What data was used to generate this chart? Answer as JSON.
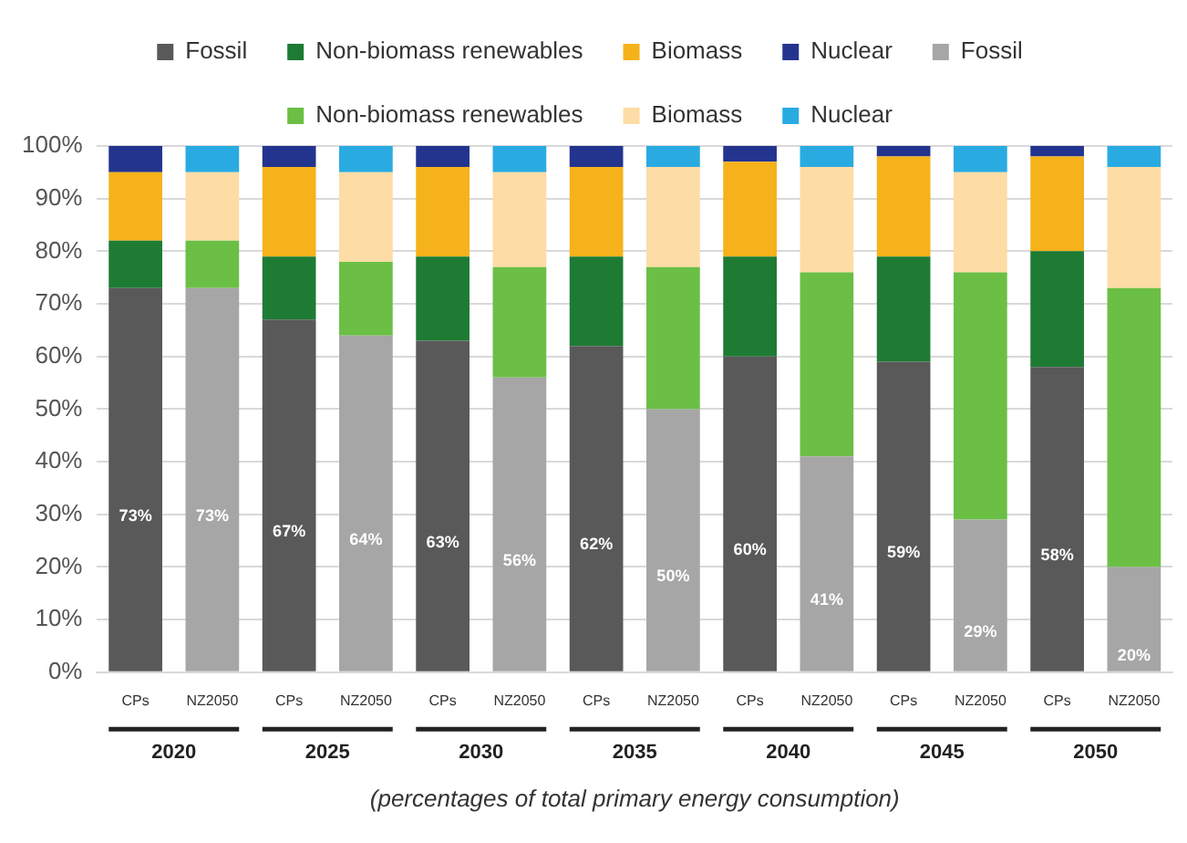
{
  "chart_data": {
    "type": "bar",
    "stacked": true,
    "categories": [
      "CPs",
      "NZ2050",
      "CPs",
      "NZ2050",
      "CPs",
      "NZ2050",
      "CPs",
      "NZ2050",
      "CPs",
      "NZ2050",
      "CPs",
      "NZ2050",
      "CPs",
      "NZ2050"
    ],
    "series": [
      {
        "name": "Fossil",
        "color": "#595959",
        "values": [
          73,
          null,
          67,
          null,
          63,
          null,
          62,
          null,
          60,
          null,
          59,
          null,
          58,
          null
        ],
        "value_labels": [
          "73%",
          null,
          "67%",
          null,
          "63%",
          null,
          "62%",
          null,
          "60%",
          null,
          "59%",
          null,
          "58%",
          null
        ]
      },
      {
        "name": "Non-biomass renewables",
        "color": "#1e7b34",
        "values": [
          9,
          null,
          12,
          null,
          16,
          null,
          17,
          null,
          19,
          null,
          20,
          null,
          22,
          null
        ]
      },
      {
        "name": "Biomass",
        "color": "#f5b21a",
        "values": [
          13,
          null,
          17,
          null,
          17,
          null,
          17,
          null,
          18,
          null,
          19,
          null,
          18,
          null
        ]
      },
      {
        "name": "Nuclear",
        "color": "#23348f",
        "values": [
          5,
          null,
          4,
          null,
          4,
          null,
          4,
          null,
          3,
          null,
          2,
          null,
          2,
          null
        ]
      },
      {
        "name": "Fossil",
        "color": "#a6a6a6",
        "values": [
          null,
          73,
          null,
          64,
          null,
          56,
          null,
          50,
          null,
          41,
          null,
          29,
          null,
          20
        ],
        "value_labels": [
          null,
          "73%",
          null,
          "64%",
          null,
          "56%",
          null,
          "50%",
          null,
          "41%",
          null,
          "29%",
          null,
          "20%"
        ]
      },
      {
        "name": "Non-biomass renewables",
        "color": "#6bbf45",
        "values": [
          null,
          9,
          null,
          14,
          null,
          21,
          null,
          27,
          null,
          35,
          null,
          47,
          null,
          53
        ]
      },
      {
        "name": "Biomass",
        "color": "#fddca5",
        "values": [
          null,
          13,
          null,
          17,
          null,
          18,
          null,
          19,
          null,
          20,
          null,
          19,
          null,
          23
        ]
      },
      {
        "name": "Nuclear",
        "color": "#29abe2",
        "values": [
          null,
          5,
          null,
          5,
          null,
          5,
          null,
          4,
          null,
          4,
          null,
          5,
          null,
          4
        ]
      }
    ],
    "ylim": [
      0,
      100
    ],
    "yticks": [
      {
        "value": 0,
        "label": "0%"
      },
      {
        "value": 10,
        "label": "10%"
      },
      {
        "value": 20,
        "label": "20%"
      },
      {
        "value": 30,
        "label": "30%"
      },
      {
        "value": 40,
        "label": "40%"
      },
      {
        "value": 50,
        "label": "50%"
      },
      {
        "value": 60,
        "label": "60%"
      },
      {
        "value": 70,
        "label": "70%"
      },
      {
        "value": 80,
        "label": "80%"
      },
      {
        "value": 90,
        "label": "90%"
      },
      {
        "value": 100,
        "label": "100%"
      }
    ],
    "grid": "y",
    "legend": "top",
    "annotations": [
      "2020",
      "2025",
      "2030",
      "2035",
      "2040",
      "2045",
      "2050",
      "(percentages of total primary energy consumption)"
    ]
  }
}
